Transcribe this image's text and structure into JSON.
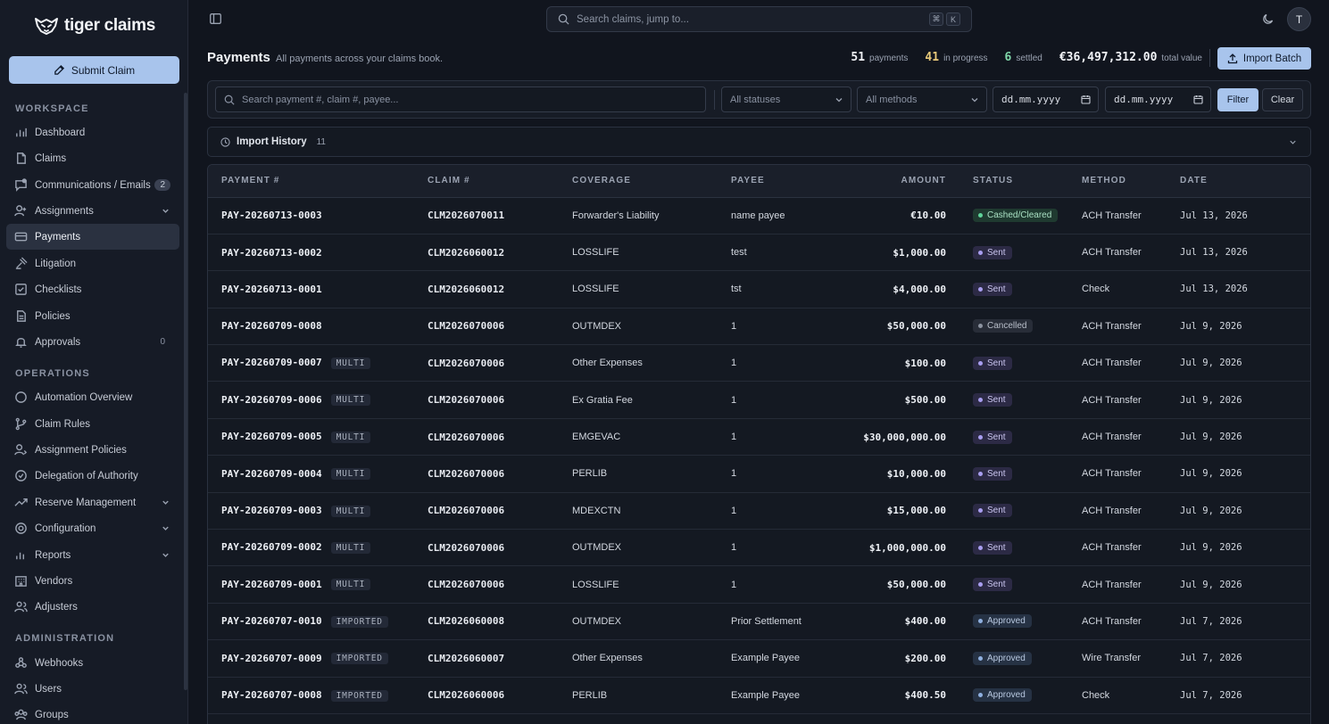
{
  "brand": {
    "name": "tiger claims"
  },
  "sidebar": {
    "submit_label": "Submit Claim",
    "sections": [
      {
        "label": "WORKSPACE",
        "items": [
          {
            "label": "Dashboard",
            "icon": "bar-chart-icon"
          },
          {
            "label": "Claims",
            "icon": "document-icon"
          },
          {
            "label": "Communications / Emails",
            "icon": "message-icon",
            "badge": "2"
          },
          {
            "label": "Assignments",
            "icon": "user-plus-icon",
            "expandable": true
          },
          {
            "label": "Payments",
            "icon": "credit-card-icon",
            "active": true
          },
          {
            "label": "Litigation",
            "icon": "gavel-icon"
          },
          {
            "label": "Checklists",
            "icon": "checklist-icon"
          },
          {
            "label": "Policies",
            "icon": "policy-icon"
          },
          {
            "label": "Approvals",
            "icon": "bell-icon",
            "count": "0"
          }
        ]
      },
      {
        "label": "OPERATIONS",
        "items": [
          {
            "label": "Automation Overview",
            "icon": "circle-icon"
          },
          {
            "label": "Claim Rules",
            "icon": "branch-icon"
          },
          {
            "label": "Assignment Policies",
            "icon": "user-policy-icon"
          },
          {
            "label": "Delegation of Authority",
            "icon": "check-circle-icon"
          },
          {
            "label": "Reserve Management",
            "icon": "trend-icon",
            "expandable": true
          },
          {
            "label": "Configuration",
            "icon": "gear-icon",
            "expandable": true
          },
          {
            "label": "Reports",
            "icon": "bar-chart-icon",
            "expandable": true
          },
          {
            "label": "Vendors",
            "icon": "building-icon"
          },
          {
            "label": "Adjusters",
            "icon": "users-icon"
          }
        ]
      },
      {
        "label": "ADMINISTRATION",
        "items": [
          {
            "label": "Webhooks",
            "icon": "webhook-icon"
          },
          {
            "label": "Users",
            "icon": "users-icon"
          },
          {
            "label": "Groups",
            "icon": "group-icon"
          }
        ]
      }
    ]
  },
  "topbar": {
    "search_placeholder": "Search claims, jump to...",
    "kbd": [
      "⌘",
      "K"
    ],
    "avatar_initial": "T"
  },
  "header": {
    "title": "Payments",
    "subtitle": "All payments across your claims book.",
    "stats": {
      "payments_count": "51",
      "payments_label": "payments",
      "progress_count": "41",
      "progress_label": "in progress",
      "settled_count": "6",
      "settled_label": "settled",
      "total_value": "€36,497,312.00",
      "total_label": "total value"
    },
    "import_label": "Import Batch",
    "colors": {
      "payments": "#f1f3f7",
      "progress": "#e8c97a",
      "settled": "#7fd6a8"
    }
  },
  "filters": {
    "search_placeholder": "Search payment #, claim #, payee...",
    "status_value": "All statuses",
    "method_value": "All methods",
    "date_from": "dd.mm.yyyy",
    "date_to": "dd.mm.yyyy",
    "filter_label": "Filter",
    "clear_label": "Clear"
  },
  "import_history": {
    "label": "Import History",
    "count": "11"
  },
  "table": {
    "columns": [
      "PAYMENT #",
      "CLAIM #",
      "COVERAGE",
      "PAYEE",
      "AMOUNT",
      "STATUS",
      "METHOD",
      "DATE"
    ],
    "rows": [
      {
        "payment": "PAY-20260713-0003",
        "tag": "",
        "claim": "CLM2026070011",
        "coverage": "Forwarder's Liability",
        "payee": "name payee",
        "amount": "€10.00",
        "status": "Cashed/Cleared",
        "status_kind": "cleared",
        "method": "ACH Transfer",
        "date": "Jul 13, 2026"
      },
      {
        "payment": "PAY-20260713-0002",
        "tag": "",
        "claim": "CLM2026060012",
        "coverage": "LOSSLIFE",
        "payee": "test",
        "amount": "$1,000.00",
        "status": "Sent",
        "status_kind": "sent",
        "method": "ACH Transfer",
        "date": "Jul 13, 2026"
      },
      {
        "payment": "PAY-20260713-0001",
        "tag": "",
        "claim": "CLM2026060012",
        "coverage": "LOSSLIFE",
        "payee": "tst",
        "amount": "$4,000.00",
        "status": "Sent",
        "status_kind": "sent",
        "method": "Check",
        "date": "Jul 13, 2026"
      },
      {
        "payment": "PAY-20260709-0008",
        "tag": "",
        "claim": "CLM2026070006",
        "coverage": "OUTMDEX",
        "payee": "1",
        "amount": "$50,000.00",
        "status": "Cancelled",
        "status_kind": "cancelled",
        "method": "ACH Transfer",
        "date": "Jul 9, 2026"
      },
      {
        "payment": "PAY-20260709-0007",
        "tag": "MULTI",
        "claim": "CLM2026070006",
        "coverage": "Other Expenses",
        "payee": "1",
        "amount": "$100.00",
        "status": "Sent",
        "status_kind": "sent",
        "method": "ACH Transfer",
        "date": "Jul 9, 2026"
      },
      {
        "payment": "PAY-20260709-0006",
        "tag": "MULTI",
        "claim": "CLM2026070006",
        "coverage": "Ex Gratia Fee",
        "payee": "1",
        "amount": "$500.00",
        "status": "Sent",
        "status_kind": "sent",
        "method": "ACH Transfer",
        "date": "Jul 9, 2026"
      },
      {
        "payment": "PAY-20260709-0005",
        "tag": "MULTI",
        "claim": "CLM2026070006",
        "coverage": "EMGEVAC",
        "payee": "1",
        "amount": "$30,000,000.00",
        "status": "Sent",
        "status_kind": "sent",
        "method": "ACH Transfer",
        "date": "Jul 9, 2026"
      },
      {
        "payment": "PAY-20260709-0004",
        "tag": "MULTI",
        "claim": "CLM2026070006",
        "coverage": "PERLIB",
        "payee": "1",
        "amount": "$10,000.00",
        "status": "Sent",
        "status_kind": "sent",
        "method": "ACH Transfer",
        "date": "Jul 9, 2026"
      },
      {
        "payment": "PAY-20260709-0003",
        "tag": "MULTI",
        "claim": "CLM2026070006",
        "coverage": "MDEXCTN",
        "payee": "1",
        "amount": "$15,000.00",
        "status": "Sent",
        "status_kind": "sent",
        "method": "ACH Transfer",
        "date": "Jul 9, 2026"
      },
      {
        "payment": "PAY-20260709-0002",
        "tag": "MULTI",
        "claim": "CLM2026070006",
        "coverage": "OUTMDEX",
        "payee": "1",
        "amount": "$1,000,000.00",
        "status": "Sent",
        "status_kind": "sent",
        "method": "ACH Transfer",
        "date": "Jul 9, 2026"
      },
      {
        "payment": "PAY-20260709-0001",
        "tag": "MULTI",
        "claim": "CLM2026070006",
        "coverage": "LOSSLIFE",
        "payee": "1",
        "amount": "$50,000.00",
        "status": "Sent",
        "status_kind": "sent",
        "method": "ACH Transfer",
        "date": "Jul 9, 2026"
      },
      {
        "payment": "PAY-20260707-0010",
        "tag": "IMPORTED",
        "claim": "CLM2026060008",
        "coverage": "OUTMDEX",
        "payee": "Prior Settlement",
        "amount": "$400.00",
        "status": "Approved",
        "status_kind": "approved",
        "method": "ACH Transfer",
        "date": "Jul 7, 2026"
      },
      {
        "payment": "PAY-20260707-0009",
        "tag": "IMPORTED",
        "claim": "CLM2026060007",
        "coverage": "Other Expenses",
        "payee": "Example Payee",
        "amount": "$200.00",
        "status": "Approved",
        "status_kind": "approved",
        "method": "Wire Transfer",
        "date": "Jul 7, 2026"
      },
      {
        "payment": "PAY-20260707-0008",
        "tag": "IMPORTED",
        "claim": "CLM2026060006",
        "coverage": "PERLIB",
        "payee": "Example Payee",
        "amount": "$400.50",
        "status": "Approved",
        "status_kind": "approved",
        "method": "Check",
        "date": "Jul 7, 2026"
      }
    ]
  }
}
